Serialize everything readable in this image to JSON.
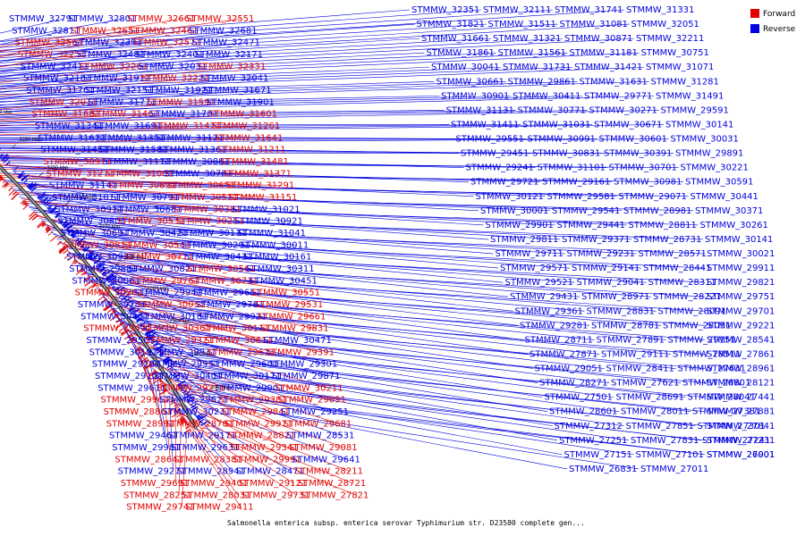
{
  "colors": {
    "forward": "#e00000",
    "reverse": "#0000e0",
    "backbone": "#555555"
  },
  "legend": {
    "forward_label": "Forward",
    "reverse_label": "Reverse"
  },
  "caption": "Salmonella enterica subsp. enterica serovar Typhimurium str. D23580 complete gen...",
  "ticks": [
    "3450 kbp",
    "3400 kbp",
    "3350 kbp",
    "3300 kbp",
    "3250 kbp",
    "3200 kbp",
    "3150 kbp",
    "3100 kbp",
    "3050 kbp",
    "3000 kbp",
    "2950 kbp",
    "2900 kbp",
    "2850 kbp"
  ],
  "left_labels": [
    {
      "t": "STMMW_32791",
      "s": "r"
    },
    {
      "t": "STMMW_32801",
      "s": "r"
    },
    {
      "t": "STMMW_32661",
      "s": "f"
    },
    {
      "t": "STMMW_32551",
      "s": "f"
    },
    {
      "t": "STMMW_32811",
      "s": "r"
    },
    {
      "t": "STMMW_32651",
      "s": "f"
    },
    {
      "t": "STMMW_32461",
      "s": "f"
    },
    {
      "t": "STMMW_32681",
      "s": "r"
    },
    {
      "t": "STMMW_32561",
      "s": "f"
    },
    {
      "t": "STMMW_32391",
      "s": "r"
    },
    {
      "t": "STMMW_32571",
      "s": "f"
    },
    {
      "t": "STMMW_32471",
      "s": "r"
    },
    {
      "t": "STMMW_32251",
      "s": "f"
    },
    {
      "t": "STMMW_32481",
      "s": "r"
    },
    {
      "t": "STMMW_32401",
      "s": "r"
    },
    {
      "t": "STMMW_32171",
      "s": "r"
    },
    {
      "t": "STMMW_32411",
      "s": "r"
    },
    {
      "t": "STMMW_32261",
      "s": "f"
    },
    {
      "t": "STMMW_32031",
      "s": "r"
    },
    {
      "t": "STMMW_32331",
      "s": "f"
    },
    {
      "t": "STMMW_32181",
      "s": "r"
    },
    {
      "t": "STMMW_31911",
      "s": "r"
    },
    {
      "t": "STMMW_32221",
      "s": "f"
    },
    {
      "t": "STMMW_32041",
      "s": "r"
    },
    {
      "t": "STMMW_31761",
      "s": "r"
    },
    {
      "t": "STMMW_32151",
      "s": "r"
    },
    {
      "t": "STMMW_31921",
      "s": "r"
    },
    {
      "t": "STMMW_31671",
      "s": "r"
    },
    {
      "t": "STMMW_32011",
      "s": "f"
    },
    {
      "t": "STMMW_31771",
      "s": "r"
    },
    {
      "t": "STMMW_31591",
      "s": "f"
    },
    {
      "t": "STMMW_31901",
      "s": "r"
    },
    {
      "t": "STMMW_31681",
      "s": "f"
    },
    {
      "t": "STMMW_31461",
      "s": "f"
    },
    {
      "t": "STMMW_31781",
      "s": "r"
    },
    {
      "t": "STMMW_31601",
      "s": "f"
    },
    {
      "t": "STMMW_31341",
      "s": "r"
    },
    {
      "t": "STMMW_31691",
      "s": "r"
    },
    {
      "t": "STMMW_31471",
      "s": "f"
    },
    {
      "t": "STMMW_31261",
      "s": "f"
    },
    {
      "t": "STMMW_31611",
      "s": "r"
    },
    {
      "t": "STMMW_31351",
      "s": "r"
    },
    {
      "t": "STMMW_31121",
      "s": "r"
    },
    {
      "t": "STMMW_31641",
      "s": "f"
    },
    {
      "t": "STMMW_31451",
      "s": "r"
    },
    {
      "t": "STMMW_31581",
      "s": "r"
    },
    {
      "t": "STMMW_31361",
      "s": "r"
    },
    {
      "t": "STMMW_31211",
      "s": "f"
    },
    {
      "t": "STMMW_30971",
      "s": "f"
    },
    {
      "t": "STMMW_31111",
      "s": "r"
    },
    {
      "t": "STMMW_30881",
      "s": "r"
    },
    {
      "t": "STMMW_31481",
      "s": "f"
    },
    {
      "t": "STMMW_31271",
      "s": "f"
    },
    {
      "t": "STMMW_31001",
      "s": "f"
    },
    {
      "t": "STMMW_30781",
      "s": "r"
    },
    {
      "t": "STMMW_31371",
      "s": "f"
    },
    {
      "t": "STMMW_31141",
      "s": "r"
    },
    {
      "t": "STMMW_30891",
      "s": "f"
    },
    {
      "t": "STMMW_30651",
      "s": "f"
    },
    {
      "t": "STMMW_31291",
      "s": "f"
    },
    {
      "t": "STMMW_31011",
      "s": "r"
    },
    {
      "t": "STMMW_30791",
      "s": "r"
    },
    {
      "t": "STMMW_30511",
      "s": "f"
    },
    {
      "t": "STMMW_31151",
      "s": "f"
    },
    {
      "t": "STMMW_30911",
      "s": "r"
    },
    {
      "t": "STMMW_30681",
      "s": "r"
    },
    {
      "t": "STMMW_30381",
      "s": "f"
    },
    {
      "t": "STMMW_31021",
      "s": "r"
    },
    {
      "t": "STMMW_30801",
      "s": "r"
    },
    {
      "t": "STMMW_30531",
      "s": "f"
    },
    {
      "t": "STMMW_30251",
      "s": "f"
    },
    {
      "t": "STMMW_30921",
      "s": "r"
    },
    {
      "t": "STMMW_30691",
      "s": "r"
    },
    {
      "t": "STMMW_30421",
      "s": "r"
    },
    {
      "t": "STMMW_30131",
      "s": "r"
    },
    {
      "t": "STMMW_31041",
      "s": "r"
    },
    {
      "t": "STMMW_30811",
      "s": "f"
    },
    {
      "t": "STMMW_30541",
      "s": "f"
    },
    {
      "t": "STMMW_30291",
      "s": "r"
    },
    {
      "t": "STMMW_30011",
      "s": "r"
    },
    {
      "t": "STMMW_30931",
      "s": "r"
    },
    {
      "t": "STMMW_30711",
      "s": "f"
    },
    {
      "t": "STMMW_30431",
      "s": "r"
    },
    {
      "t": "STMMW_30161",
      "s": "r"
    },
    {
      "t": "STMMW_29881",
      "s": "r"
    },
    {
      "t": "STMMW_30821",
      "s": "r"
    },
    {
      "t": "STMMW_30561",
      "s": "f"
    },
    {
      "t": "STMMW_30311",
      "s": "r"
    },
    {
      "t": "STMMW_30061",
      "s": "r"
    },
    {
      "t": "STMMW_29761",
      "s": "f"
    },
    {
      "t": "STMMW_30731",
      "s": "f"
    },
    {
      "t": "STMMW_30451",
      "s": "r"
    },
    {
      "t": "STMMW_30201",
      "s": "f"
    },
    {
      "t": "STMMW_29941",
      "s": "r"
    },
    {
      "t": "STMMW_29651",
      "s": "r"
    },
    {
      "t": "STMMW_30551",
      "s": "f"
    },
    {
      "t": "STMMW_30281",
      "s": "r"
    },
    {
      "t": "STMMW_30051",
      "s": "f"
    },
    {
      "t": "STMMW_29781",
      "s": "r"
    },
    {
      "t": "STMMW_29531",
      "s": "f"
    },
    {
      "t": "STMMW_30461",
      "s": "r"
    },
    {
      "t": "STMMW_30181",
      "s": "r"
    },
    {
      "t": "STMMW_29921",
      "s": "r"
    },
    {
      "t": "STMMW_29661",
      "s": "f"
    },
    {
      "t": "STMMW_29421",
      "s": "f"
    },
    {
      "t": "STMMW_30361",
      "s": "f"
    },
    {
      "t": "STMMW_30111",
      "s": "f"
    },
    {
      "t": "STMMW_29831",
      "s": "f"
    },
    {
      "t": "STMMW_29561",
      "s": "r"
    },
    {
      "t": "STMMW_29321",
      "s": "f"
    },
    {
      "t": "STMMW_30611",
      "s": "f"
    },
    {
      "t": "STMMW_30471",
      "s": "r"
    },
    {
      "t": "STMMW_30191",
      "s": "r"
    },
    {
      "t": "STMMW_29931",
      "s": "r"
    },
    {
      "t": "STMMW_29671",
      "s": "f"
    },
    {
      "t": "STMMW_29391",
      "s": "f"
    },
    {
      "t": "STMMW_29201",
      "s": "r"
    },
    {
      "t": "STMMW_29951",
      "s": "r"
    },
    {
      "t": "STMMW_29601",
      "s": "r"
    },
    {
      "t": "STMMW_29301",
      "s": "r"
    },
    {
      "t": "STMMW_29101",
      "s": "r"
    },
    {
      "t": "STMMW_30401",
      "s": "r"
    },
    {
      "t": "STMMW_30171",
      "s": "r"
    },
    {
      "t": "STMMW_29871",
      "s": "r"
    },
    {
      "t": "STMMW_29611",
      "s": "r"
    },
    {
      "t": "STMMW_29211",
      "s": "f"
    },
    {
      "t": "STMMW_29001",
      "s": "r"
    },
    {
      "t": "STMMW_30211",
      "s": "f"
    },
    {
      "t": "STMMW_29961",
      "s": "f"
    },
    {
      "t": "STMMW_29621",
      "s": "r"
    },
    {
      "t": "STMMW_29381",
      "s": "f"
    },
    {
      "t": "STMMW_29091",
      "s": "f"
    },
    {
      "t": "STMMW_28861",
      "s": "f"
    },
    {
      "t": "STMMW_30231",
      "s": "r"
    },
    {
      "t": "STMMW_29841",
      "s": "f"
    },
    {
      "t": "STMMW_29251",
      "s": "r"
    },
    {
      "t": "STMMW_28991",
      "s": "f"
    },
    {
      "t": "STMMW_28701",
      "s": "f"
    },
    {
      "t": "STMMW_29971",
      "s": "f"
    },
    {
      "t": "STMMW_29681",
      "s": "f"
    },
    {
      "t": "STMMW_29461",
      "s": "r"
    },
    {
      "t": "STMMW_29171",
      "s": "r"
    },
    {
      "t": "STMMW_28821",
      "s": "f"
    },
    {
      "t": "STMMW_28531",
      "s": "r"
    },
    {
      "t": "STMMW_29981",
      "s": "r"
    },
    {
      "t": "STMMW_29631",
      "s": "r"
    },
    {
      "t": "STMMW_29341",
      "s": "f"
    },
    {
      "t": "STMMW_29081",
      "s": "f"
    },
    {
      "t": "STMMW_28641",
      "s": "f"
    },
    {
      "t": "STMMW_28381",
      "s": "f"
    },
    {
      "t": "STMMW_29991",
      "s": "f"
    },
    {
      "t": "STMMW_29641",
      "s": "r"
    },
    {
      "t": "STMMW_29271",
      "s": "r"
    },
    {
      "t": "STMMW_28941",
      "s": "r"
    },
    {
      "t": "STMMW_28471",
      "s": "r"
    },
    {
      "t": "STMMW_28211",
      "s": "f"
    },
    {
      "t": "STMMW_29691",
      "s": "f"
    },
    {
      "t": "STMMW_29401",
      "s": "f"
    },
    {
      "t": "STMMW_29121",
      "s": "f"
    },
    {
      "t": "STMMW_28721",
      "s": "f"
    },
    {
      "t": "STMMW_28251",
      "s": "f"
    },
    {
      "t": "STMMW_28031",
      "s": "f"
    },
    {
      "t": "STMMW_29731",
      "s": "f"
    },
    {
      "t": "STMMW_27821",
      "s": "f"
    },
    {
      "t": "STMMW_29741",
      "s": "f"
    },
    {
      "t": "STMMW_29411",
      "s": "f"
    }
  ],
  "right_labels": [
    {
      "t": "STMMW_32351",
      "s": "r"
    },
    {
      "t": "STMMW_32111",
      "s": "r"
    },
    {
      "t": "STMMW_31741",
      "s": "r"
    },
    {
      "t": "STMMW_31331",
      "s": "r"
    },
    {
      "t": "STMMW_31821",
      "s": "r"
    },
    {
      "t": "STMMW_31511",
      "s": "r"
    },
    {
      "t": "STMMW_31081",
      "s": "r"
    },
    {
      "t": "STMMW_32051",
      "s": "r"
    },
    {
      "t": "STMMW_31661",
      "s": "r"
    },
    {
      "t": "STMMW_31321",
      "s": "r"
    },
    {
      "t": "STMMW_30871",
      "s": "r"
    },
    {
      "t": "STMMW_32211",
      "s": "r"
    },
    {
      "t": "STMMW_31861",
      "s": "r"
    },
    {
      "t": "STMMW_31561",
      "s": "r"
    },
    {
      "t": "STMMW_31181",
      "s": "r"
    },
    {
      "t": "STMMW_30751",
      "s": "r"
    },
    {
      "t": "STMMW_30041",
      "s": "r"
    },
    {
      "t": "STMMW_31731",
      "s": "r"
    },
    {
      "t": "STMMW_31421",
      "s": "r"
    },
    {
      "t": "STMMW_31071",
      "s": "r"
    },
    {
      "t": "STMMW_30661",
      "s": "r"
    },
    {
      "t": "STMMW_29861",
      "s": "r"
    },
    {
      "t": "STMMW_31631",
      "s": "r"
    },
    {
      "t": "STMMW_31281",
      "s": "r"
    },
    {
      "t": "STMMW_30901",
      "s": "r"
    },
    {
      "t": "STMMW_30411",
      "s": "r"
    },
    {
      "t": "STMMW_29771",
      "s": "r"
    },
    {
      "t": "STMMW_31491",
      "s": "r"
    },
    {
      "t": "STMMW_31131",
      "s": "r"
    },
    {
      "t": "STMMW_30771",
      "s": "r"
    },
    {
      "t": "STMMW_30271",
      "s": "r"
    },
    {
      "t": "STMMW_29591",
      "s": "r"
    },
    {
      "t": "STMMW_31411",
      "s": "r"
    },
    {
      "t": "STMMW_31031",
      "s": "r"
    },
    {
      "t": "STMMW_30671",
      "s": "r"
    },
    {
      "t": "STMMW_30141",
      "s": "r"
    },
    {
      "t": "STMMW_29551",
      "s": "r"
    },
    {
      "t": "STMMW_30991",
      "s": "r"
    },
    {
      "t": "STMMW_30601",
      "s": "r"
    },
    {
      "t": "STMMW_30031",
      "s": "r"
    },
    {
      "t": "STMMW_29451",
      "s": "r"
    },
    {
      "t": "STMMW_30831",
      "s": "r"
    },
    {
      "t": "STMMW_30391",
      "s": "r"
    },
    {
      "t": "STMMW_29891",
      "s": "r"
    },
    {
      "t": "STMMW_29241",
      "s": "r"
    },
    {
      "t": "STMMW_31101",
      "s": "r"
    },
    {
      "t": "STMMW_30701",
      "s": "r"
    },
    {
      "t": "STMMW_30221",
      "s": "r"
    },
    {
      "t": "STMMW_29721",
      "s": "r"
    },
    {
      "t": "STMMW_29161",
      "s": "r"
    },
    {
      "t": "STMMW_30981",
      "s": "r"
    },
    {
      "t": "STMMW_30591",
      "s": "r"
    },
    {
      "t": "STMMW_30121",
      "s": "r"
    },
    {
      "t": "STMMW_29581",
      "s": "r"
    },
    {
      "t": "STMMW_29071",
      "s": "r"
    },
    {
      "t": "STMMW_30441",
      "s": "r"
    },
    {
      "t": "STMMW_30001",
      "s": "r"
    },
    {
      "t": "STMMW_29541",
      "s": "r"
    },
    {
      "t": "STMMW_28981",
      "s": "r"
    },
    {
      "t": "STMMW_30371",
      "s": "r"
    },
    {
      "t": "STMMW_29901",
      "s": "r"
    },
    {
      "t": "STMMW_29441",
      "s": "r"
    },
    {
      "t": "STMMW_28811",
      "s": "r"
    },
    {
      "t": "STMMW_30261",
      "s": "r"
    },
    {
      "t": "STMMW_29811",
      "s": "r"
    },
    {
      "t": "STMMW_29371",
      "s": "r"
    },
    {
      "t": "STMMW_28731",
      "s": "r"
    },
    {
      "t": "STMMW_30141",
      "s": "r"
    },
    {
      "t": "STMMW_29711",
      "s": "r"
    },
    {
      "t": "STMMW_29231",
      "s": "r"
    },
    {
      "t": "STMMW_28571",
      "s": "r"
    },
    {
      "t": "STMMW_30021",
      "s": "r"
    },
    {
      "t": "STMMW_29571",
      "s": "r"
    },
    {
      "t": "STMMW_29141",
      "s": "r"
    },
    {
      "t": "STMMW_28441",
      "s": "r"
    },
    {
      "t": "STMMW_29911",
      "s": "r"
    },
    {
      "t": "STMMW_29521",
      "s": "r"
    },
    {
      "t": "STMMW_29041",
      "s": "r"
    },
    {
      "t": "STMMW_28311",
      "s": "r"
    },
    {
      "t": "STMMW_29821",
      "s": "r"
    },
    {
      "t": "STMMW_29431",
      "s": "r"
    },
    {
      "t": "STMMW_28971",
      "s": "r"
    },
    {
      "t": "STMMW_28221",
      "s": "r"
    },
    {
      "t": "STMMW_29751",
      "s": "r"
    },
    {
      "t": "STMMW_29361",
      "s": "r"
    },
    {
      "t": "STMMW_28831",
      "s": "r"
    },
    {
      "t": "STMMW_28091",
      "s": "r"
    },
    {
      "t": "STMMW_29701",
      "s": "r"
    },
    {
      "t": "STMMW_29281",
      "s": "r"
    },
    {
      "t": "STMMW_28781",
      "s": "r"
    },
    {
      "t": "STMMW_28051",
      "s": "r"
    },
    {
      "t": "STMMW_29221",
      "s": "r"
    },
    {
      "t": "STMMW_28711",
      "s": "r"
    },
    {
      "t": "STMMW_27891",
      "s": "r"
    },
    {
      "t": "STMMW_29151",
      "s": "r"
    },
    {
      "t": "STMMW_28541",
      "s": "r"
    },
    {
      "t": "STMMW_27871",
      "s": "r"
    },
    {
      "t": "STMMW_29111",
      "s": "r"
    },
    {
      "t": "STMMW_28511",
      "s": "r"
    },
    {
      "t": "STMMW_27861",
      "s": "r"
    },
    {
      "t": "STMMW_29051",
      "s": "r"
    },
    {
      "t": "STMMW_28411",
      "s": "r"
    },
    {
      "t": "STMMW_27631",
      "s": "r"
    },
    {
      "t": "STMMW_28961",
      "s": "r"
    },
    {
      "t": "STMMW_28271",
      "s": "r"
    },
    {
      "t": "STMMW_27621",
      "s": "r"
    },
    {
      "t": "STMMW_28801",
      "s": "r"
    },
    {
      "t": "STMMW_28121",
      "s": "r"
    },
    {
      "t": "STMMW_27501",
      "s": "r"
    },
    {
      "t": "STMMW_28691",
      "s": "r"
    },
    {
      "t": "STMMW_28041",
      "s": "r"
    },
    {
      "t": "STMMW_27441",
      "s": "r"
    },
    {
      "t": "STMMW_28601",
      "s": "r"
    },
    {
      "t": "STMMW_28011",
      "s": "r"
    },
    {
      "t": "STMMW_27381",
      "s": "r"
    },
    {
      "t": "STMMW_27881",
      "s": "r"
    },
    {
      "t": "STMMW_27312",
      "s": "r"
    },
    {
      "t": "STMMW_27851",
      "s": "r"
    },
    {
      "t": "STMMW_27301",
      "s": "r"
    },
    {
      "t": "STMMW_27841",
      "s": "r"
    },
    {
      "t": "STMMW_27251",
      "s": "r"
    },
    {
      "t": "STMMW_27831",
      "s": "r"
    },
    {
      "t": "STMMW_27241",
      "s": "r"
    },
    {
      "t": "STMMW_27231",
      "s": "r"
    },
    {
      "t": "STMMW_27151",
      "s": "r"
    },
    {
      "t": "STMMW_27101",
      "s": "r"
    },
    {
      "t": "STMMW_27001",
      "s": "r"
    },
    {
      "t": "STMMW_26901",
      "s": "r"
    },
    {
      "t": "STMMW_26831",
      "s": "r"
    },
    {
      "t": "STMMW_27011",
      "s": "r"
    }
  ]
}
